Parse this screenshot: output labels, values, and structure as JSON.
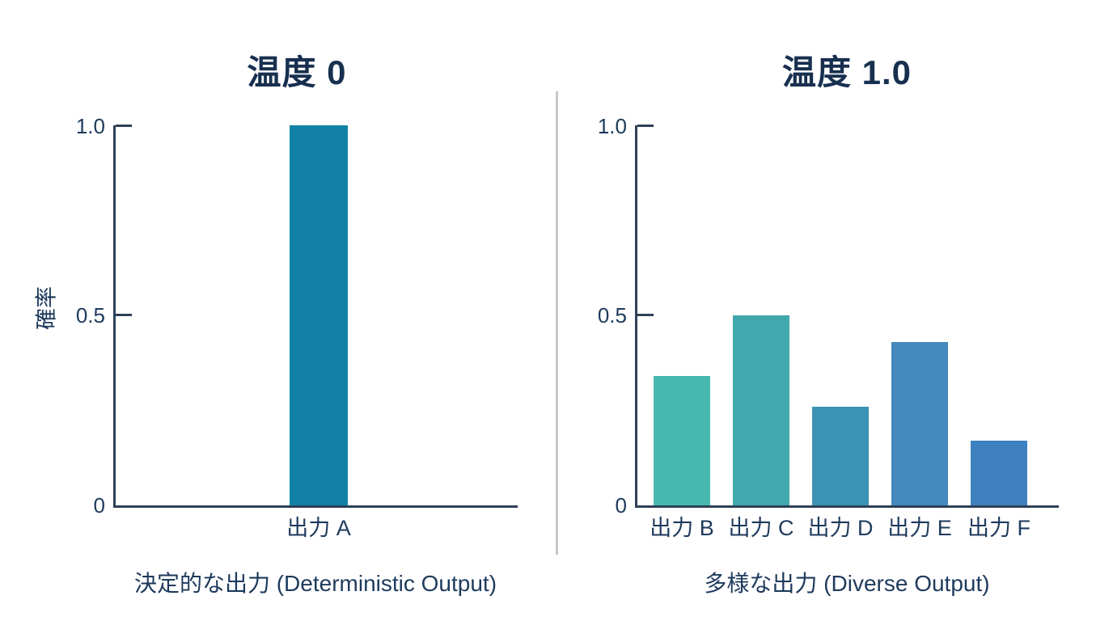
{
  "figure": {
    "background": "#ffffff",
    "divider_color": "#c9c9c9",
    "axis_color": "#2e4156",
    "text_color": "#1e3a5c",
    "title_color": "#18304f"
  },
  "chart_data": [
    {
      "type": "bar",
      "title": "温度 0",
      "ylabel": "確率",
      "xlabel": "",
      "caption": "決定的な出力 (Deterministic Output)",
      "categories": [
        "出力 A"
      ],
      "values": [
        1.0
      ],
      "colors": [
        "#1182a6"
      ],
      "ylim": [
        0,
        1.0
      ],
      "yticks": [
        "0",
        "0.5",
        "1.0"
      ],
      "grid": false,
      "legend": "none"
    },
    {
      "type": "bar",
      "title": "温度 1.0",
      "ylabel": "",
      "xlabel": "",
      "caption": "多様な出力 (Diverse Output)",
      "categories": [
        "出力 B",
        "出力 C",
        "出力 D",
        "出力 E",
        "出力 F"
      ],
      "values": [
        0.34,
        0.5,
        0.26,
        0.43,
        0.17
      ],
      "colors": [
        "#46b8b0",
        "#41a8ad",
        "#3b92b2",
        "#4389bd",
        "#3e80c0"
      ],
      "ylim": [
        0,
        1.0
      ],
      "yticks": [
        "0",
        "0.5",
        "1.0"
      ],
      "grid": false,
      "legend": "none"
    }
  ]
}
